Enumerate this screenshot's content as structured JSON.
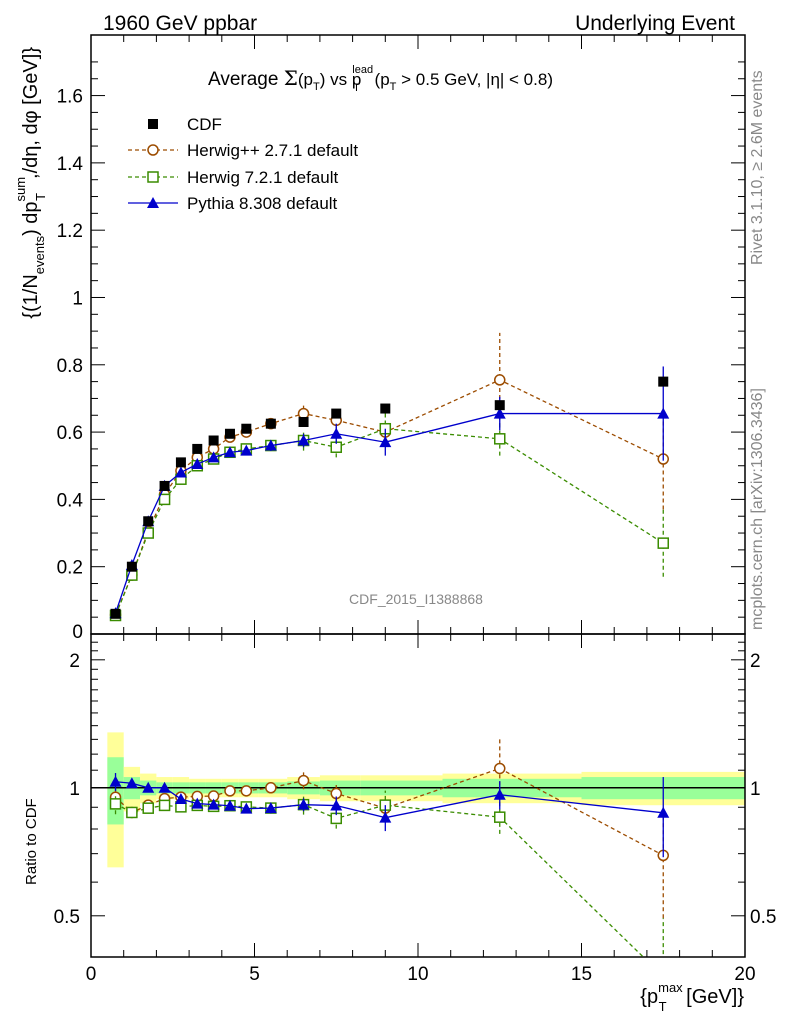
{
  "header": {
    "left": "1960 GeV ppbar",
    "right": "Underlying Event"
  },
  "side_labels": {
    "rivet": "Rivet 3.1.10, ≥ 2.6M events",
    "mcplots": "mcplots.cern.ch [arXiv:1306.3436]"
  },
  "chart_data": {
    "type": "scatter",
    "title": {
      "prefix": "Average ",
      "sigma": "Σ",
      "arg": "(p",
      "arg_sub": "T",
      "arg_close": ")",
      "vs": " vs p",
      "vs_sup": "lead",
      "vs_sub": "T",
      "cut_open": " (p",
      "cut_sub": "T",
      "cut_rest": " > 0.5 GeV, |η| < 0.8)"
    },
    "watermark": "CDF_2015_I1388868",
    "ylabel": {
      "p1": "{(1/N",
      "p1_sub": "events",
      "p2": ") dp",
      "p2_sup": "sum",
      "p2_sub": "T",
      "p3": ",/dη, dφ [GeV]}"
    },
    "ratio_ylabel": "Ratio to CDF",
    "xlabel": {
      "p1": "{p",
      "sup": "max",
      "sub": "T",
      "p2": " [GeV]}"
    },
    "xlim": [
      0,
      20
    ],
    "ylim": [
      0,
      1.78
    ],
    "ratio_ylim": [
      0.4,
      2.3
    ],
    "x_ticks": [
      "0",
      "5",
      "10",
      "15",
      "20"
    ],
    "y_ticks": [
      "0.2",
      "0.4",
      "0.6",
      "0.8",
      "1",
      "1.2",
      "1.4",
      "1.6"
    ],
    "y_tick_zero": "0",
    "ratio_ticks": [
      "0.5",
      "1",
      "2"
    ],
    "x": [
      0.75,
      1.25,
      1.75,
      2.25,
      2.75,
      3.25,
      3.75,
      4.25,
      4.75,
      5.5,
      6.5,
      7.5,
      9.0,
      12.5,
      17.5
    ],
    "series": [
      {
        "name": "CDF",
        "color": "#000000",
        "marker": "filled-square",
        "style": "none",
        "values": [
          0.06,
          0.2,
          0.335,
          0.44,
          0.51,
          0.55,
          0.575,
          0.595,
          0.61,
          0.625,
          0.63,
          0.655,
          0.67,
          0.68,
          0.75
        ],
        "band": [
          0.35,
          0.12,
          0.08,
          0.06,
          0.06,
          0.05,
          0.05,
          0.05,
          0.05,
          0.05,
          0.06,
          0.07,
          0.07,
          0.08,
          0.09
        ],
        "band_inner": [
          0.18,
          0.06,
          0.04,
          0.03,
          0.03,
          0.03,
          0.03,
          0.03,
          0.03,
          0.03,
          0.035,
          0.04,
          0.04,
          0.05,
          0.06
        ]
      },
      {
        "name": "Herwig++ 2.7.1 default",
        "color": "#9c4c00",
        "marker": "open-circle",
        "style": "dashed",
        "values": [
          0.057,
          0.175,
          0.305,
          0.415,
          0.485,
          0.525,
          0.55,
          0.585,
          0.6,
          0.625,
          0.655,
          0.635,
          0.6,
          0.755,
          0.52
        ],
        "errors": [
          0.003,
          0.005,
          0.007,
          0.008,
          0.009,
          0.01,
          0.01,
          0.012,
          0.014,
          0.016,
          0.03,
          0.03,
          0.03,
          0.14,
          0.15
        ]
      },
      {
        "name": "Herwig 7.2.1 default",
        "color": "#3a8c00",
        "marker": "open-square",
        "style": "dashed",
        "values": [
          0.055,
          0.175,
          0.3,
          0.4,
          0.46,
          0.5,
          0.52,
          0.54,
          0.55,
          0.56,
          0.575,
          0.555,
          0.61,
          0.58,
          0.27
        ],
        "errors": [
          0.003,
          0.005,
          0.007,
          0.008,
          0.009,
          0.01,
          0.01,
          0.012,
          0.014,
          0.016,
          0.03,
          0.03,
          0.05,
          0.05,
          0.1
        ]
      },
      {
        "name": "Pythia 8.308 default",
        "color": "#0000cc",
        "marker": "filled-triangle",
        "style": "solid",
        "values": [
          0.062,
          0.205,
          0.335,
          0.44,
          0.48,
          0.505,
          0.525,
          0.54,
          0.545,
          0.56,
          0.575,
          0.595,
          0.57,
          0.655,
          0.655
        ],
        "errors": [
          0.003,
          0.005,
          0.007,
          0.008,
          0.009,
          0.01,
          0.01,
          0.012,
          0.014,
          0.016,
          0.02,
          0.03,
          0.04,
          0.05,
          0.14
        ]
      }
    ],
    "legend_position": "top-left",
    "grid": false
  }
}
